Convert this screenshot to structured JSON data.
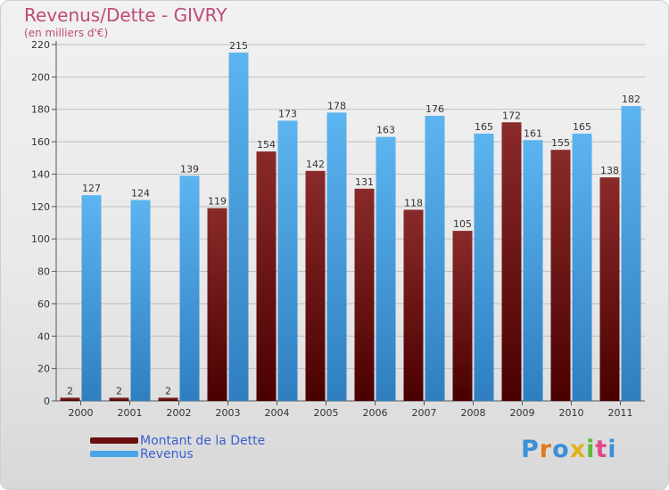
{
  "title": "Revenus/Dette - GIVRY",
  "subtitle": "(en milliers d'€)",
  "logo_text": "Proxiti",
  "logo_colors": [
    "#3b8fd8",
    "#e07a1c",
    "#3b8fd8",
    "#e0b21c",
    "#5cb83a",
    "#e04a8a",
    "#3b8fd8"
  ],
  "colors": {
    "dette": "#7a1a1a",
    "revenus": "#4aa6e8",
    "axis_text": "#333333",
    "grid": "#bfbfbf"
  },
  "chart_data": {
    "type": "bar",
    "title": "Revenus/Dette - GIVRY",
    "subtitle": "(en milliers d'€)",
    "categories": [
      "2000",
      "2001",
      "2002",
      "2003",
      "2004",
      "2005",
      "2006",
      "2007",
      "2008",
      "2009",
      "2010",
      "2011"
    ],
    "series": [
      {
        "name": "Montant de la Dette",
        "values": [
          2,
          2,
          2,
          119,
          154,
          142,
          131,
          118,
          105,
          172,
          155,
          138
        ]
      },
      {
        "name": "Revenus",
        "values": [
          127,
          124,
          139,
          215,
          173,
          178,
          163,
          176,
          165,
          161,
          165,
          182
        ]
      }
    ],
    "ylim": [
      0,
      220
    ],
    "yticks": [
      0,
      20,
      40,
      60,
      80,
      100,
      120,
      140,
      160,
      180,
      200,
      220
    ],
    "grid": true,
    "legend_position": "bottom-left"
  }
}
